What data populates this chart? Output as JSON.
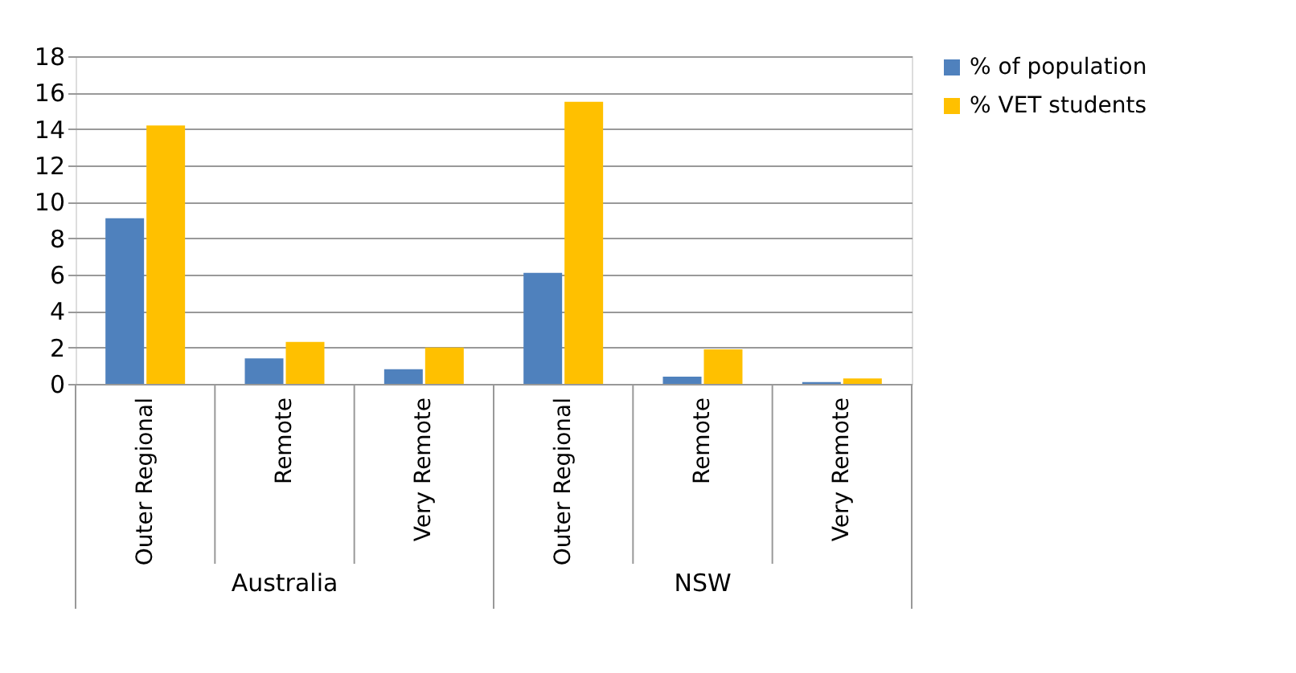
{
  "chart_data": {
    "type": "bar",
    "categories": [
      "Outer Regional",
      "Remote",
      "Very Remote",
      "Outer Regional",
      "Remote",
      "Very Remote"
    ],
    "series": [
      {
        "name": "% of population",
        "color": "#4f81bd",
        "values": [
          9.1,
          1.4,
          0.8,
          6.1,
          0.4,
          0.1
        ]
      },
      {
        "name": "% VET students",
        "color": "#ffc000",
        "values": [
          14.2,
          2.3,
          2.0,
          15.5,
          1.9,
          0.3
        ]
      }
    ],
    "annotations": [
      "Australia",
      "NSW"
    ],
    "ylim": [
      0,
      18
    ],
    "yticks": [
      0,
      2,
      4,
      6,
      8,
      10,
      12,
      14,
      16,
      18
    ],
    "grid": "y",
    "legend": "right"
  }
}
